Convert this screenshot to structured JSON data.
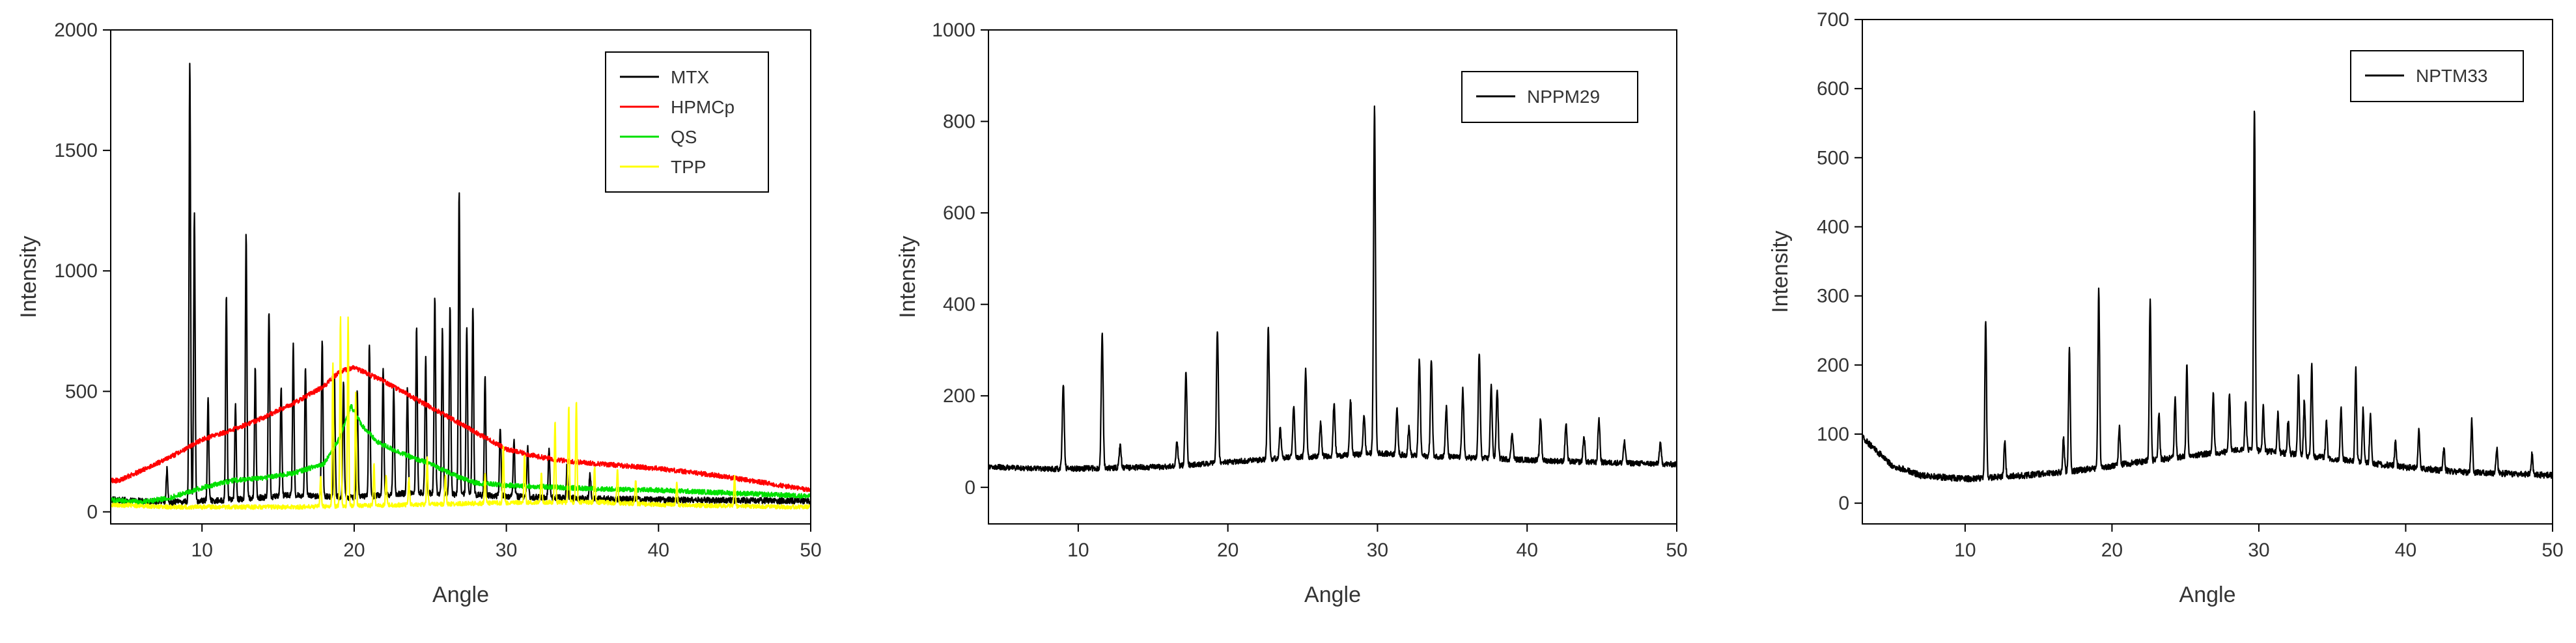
{
  "chart_data": [
    {
      "type": "line",
      "xlabel": "Angle",
      "ylabel": "Intensity",
      "xlim": [
        4,
        50
      ],
      "ylim": [
        -50,
        2000
      ],
      "xticks": [
        10,
        20,
        30,
        40,
        50
      ],
      "yticks": [
        0,
        500,
        1000,
        1500,
        2000
      ],
      "legend": "top-right",
      "colors": {
        "MTX": "#000000",
        "HPMCp": "#ff0000",
        "QS": "#00e000",
        "TPP": "#ffff00"
      },
      "series": [
        {
          "name": "MTX",
          "baseline": [
            [
              4,
              50
            ],
            [
              8,
              40
            ],
            [
              12,
              50
            ],
            [
              16,
              70
            ],
            [
              20,
              60
            ],
            [
              24,
              80
            ],
            [
              28,
              70
            ],
            [
              32,
              60
            ],
            [
              36,
              55
            ],
            [
              40,
              50
            ],
            [
              44,
              48
            ],
            [
              50,
              45
            ]
          ],
          "peaks": [
            [
              7.7,
              180
            ],
            [
              9.2,
              1870
            ],
            [
              9.5,
              1240
            ],
            [
              10.4,
              480
            ],
            [
              11.6,
              900
            ],
            [
              12.2,
              450
            ],
            [
              12.9,
              1150
            ],
            [
              13.5,
              600
            ],
            [
              14.4,
              840
            ],
            [
              15.2,
              520
            ],
            [
              16.0,
              690
            ],
            [
              16.8,
              600
            ],
            [
              17.9,
              720
            ],
            [
              18.7,
              560
            ],
            [
              19.3,
              530
            ],
            [
              20.2,
              510
            ],
            [
              21.0,
              700
            ],
            [
              21.9,
              600
            ],
            [
              22.6,
              510
            ],
            [
              23.5,
              520
            ],
            [
              24.1,
              760
            ],
            [
              24.7,
              640
            ],
            [
              25.3,
              900
            ],
            [
              25.8,
              760
            ],
            [
              26.3,
              860
            ],
            [
              26.9,
              1330
            ],
            [
              27.4,
              760
            ],
            [
              27.8,
              860
            ],
            [
              28.6,
              560
            ],
            [
              29.6,
              350
            ],
            [
              30.5,
              300
            ],
            [
              31.4,
              270
            ],
            [
              32.8,
              260
            ],
            [
              34.0,
              200
            ],
            [
              35.5,
              160
            ]
          ]
        },
        {
          "name": "HPMCp",
          "baseline": [
            [
              4.5,
              130
            ],
            [
              6,
              170
            ],
            [
              8,
              230
            ],
            [
              10,
              300
            ],
            [
              12,
              340
            ],
            [
              14,
              390
            ],
            [
              16,
              450
            ],
            [
              18,
              520
            ],
            [
              19,
              580
            ],
            [
              20,
              600
            ],
            [
              21,
              570
            ],
            [
              22,
              540
            ],
            [
              24,
              470
            ],
            [
              26,
              400
            ],
            [
              28,
              330
            ],
            [
              30,
              260
            ],
            [
              32,
              230
            ],
            [
              34,
              210
            ],
            [
              36,
              200
            ],
            [
              38,
              190
            ],
            [
              40,
              180
            ],
            [
              42,
              165
            ],
            [
              44,
              150
            ],
            [
              46,
              130
            ],
            [
              48,
              110
            ],
            [
              50,
              90
            ]
          ]
        },
        {
          "name": "QS",
          "baseline": [
            [
              4,
              50
            ],
            [
              6,
              40
            ],
            [
              8,
              60
            ],
            [
              10,
              100
            ],
            [
              12,
              130
            ],
            [
              14,
              140
            ],
            [
              16,
              160
            ],
            [
              18,
              200
            ],
            [
              19,
              300
            ],
            [
              19.8,
              440
            ],
            [
              20.5,
              360
            ],
            [
              21.5,
              290
            ],
            [
              22.5,
              260
            ],
            [
              24,
              220
            ],
            [
              25,
              200
            ],
            [
              26,
              170
            ],
            [
              27,
              140
            ],
            [
              28,
              120
            ],
            [
              30,
              110
            ],
            [
              32,
              105
            ],
            [
              36,
              95
            ],
            [
              40,
              90
            ],
            [
              44,
              80
            ],
            [
              50,
              65
            ]
          ]
        },
        {
          "name": "TPP",
          "baseline": [
            [
              4,
              30
            ],
            [
              8,
              20
            ],
            [
              12,
              20
            ],
            [
              16,
              20
            ],
            [
              20,
              25
            ],
            [
              24,
              30
            ],
            [
              28,
              35
            ],
            [
              32,
              40
            ],
            [
              36,
              40
            ],
            [
              40,
              30
            ],
            [
              44,
              25
            ],
            [
              50,
              20
            ]
          ],
          "peaks": [
            [
              17.8,
              150
            ],
            [
              18.6,
              620
            ],
            [
              19.1,
              810
            ],
            [
              19.6,
              800
            ],
            [
              20.1,
              500
            ],
            [
              21.3,
              200
            ],
            [
              22.1,
              150
            ],
            [
              23.6,
              140
            ],
            [
              24.8,
              220
            ],
            [
              26.0,
              160
            ],
            [
              28.6,
              160
            ],
            [
              29.8,
              280
            ],
            [
              31.2,
              240
            ],
            [
              32.3,
              160
            ],
            [
              33.2,
              380
            ],
            [
              34.1,
              440
            ],
            [
              34.6,
              460
            ],
            [
              35.8,
              190
            ],
            [
              37.3,
              180
            ],
            [
              38.5,
              130
            ],
            [
              41.2,
              120
            ],
            [
              45.0,
              150
            ]
          ]
        }
      ]
    },
    {
      "type": "line",
      "xlabel": "Angle",
      "ylabel": "Intensity",
      "xlim": [
        4,
        50
      ],
      "ylim": [
        -80,
        1000
      ],
      "xticks": [
        10,
        20,
        30,
        40,
        50
      ],
      "yticks": [
        0,
        200,
        400,
        600,
        800,
        1000
      ],
      "legend": "top-right",
      "colors": {
        "NPPM29": "#000000"
      },
      "series": [
        {
          "name": "NPPM29",
          "baseline": [
            [
              4,
              45
            ],
            [
              8,
              40
            ],
            [
              12,
              42
            ],
            [
              16,
              45
            ],
            [
              20,
              55
            ],
            [
              24,
              65
            ],
            [
              28,
              70
            ],
            [
              30,
              75
            ],
            [
              32,
              70
            ],
            [
              36,
              65
            ],
            [
              40,
              60
            ],
            [
              44,
              55
            ],
            [
              48,
              52
            ],
            [
              50,
              50
            ]
          ],
          "peaks": [
            [
              9.0,
              225
            ],
            [
              11.6,
              335
            ],
            [
              12.8,
              90
            ],
            [
              16.6,
              100
            ],
            [
              17.2,
              250
            ],
            [
              19.3,
              345
            ],
            [
              22.7,
              350
            ],
            [
              23.5,
              130
            ],
            [
              24.4,
              180
            ],
            [
              25.2,
              255
            ],
            [
              26.2,
              140
            ],
            [
              27.1,
              185
            ],
            [
              28.2,
              190
            ],
            [
              29.1,
              160
            ],
            [
              29.8,
              830
            ],
            [
              31.3,
              170
            ],
            [
              32.1,
              130
            ],
            [
              32.8,
              280
            ],
            [
              33.6,
              280
            ],
            [
              34.6,
              175
            ],
            [
              35.7,
              215
            ],
            [
              36.8,
              295
            ],
            [
              37.6,
              220
            ],
            [
              38.0,
              215
            ],
            [
              39.0,
              120
            ],
            [
              40.9,
              150
            ],
            [
              42.6,
              140
            ],
            [
              43.8,
              110
            ],
            [
              44.8,
              150
            ],
            [
              46.5,
              100
            ],
            [
              48.9,
              95
            ]
          ]
        }
      ]
    },
    {
      "type": "line",
      "xlabel": "Angle",
      "ylabel": "Intensity",
      "xlim": [
        3,
        50
      ],
      "ylim": [
        -30,
        700
      ],
      "xticks": [
        10,
        20,
        30,
        40,
        50
      ],
      "yticks": [
        0,
        100,
        200,
        300,
        400,
        500,
        600,
        700
      ],
      "legend": "top-right",
      "colors": {
        "NPTM33": "#000000"
      },
      "series": [
        {
          "name": "NPTM33",
          "baseline": [
            [
              3,
              95
            ],
            [
              4,
              75
            ],
            [
              5,
              55
            ],
            [
              7,
              40
            ],
            [
              10,
              35
            ],
            [
              14,
              40
            ],
            [
              18,
              48
            ],
            [
              22,
              60
            ],
            [
              26,
              70
            ],
            [
              29,
              78
            ],
            [
              32,
              72
            ],
            [
              36,
              62
            ],
            [
              40,
              52
            ],
            [
              44,
              45
            ],
            [
              48,
              42
            ],
            [
              50,
              40
            ]
          ],
          "peaks": [
            [
              11.4,
              265
            ],
            [
              12.7,
              90
            ],
            [
              16.7,
              95
            ],
            [
              17.1,
              225
            ],
            [
              19.1,
              310
            ],
            [
              20.5,
              110
            ],
            [
              22.6,
              295
            ],
            [
              23.2,
              130
            ],
            [
              24.3,
              155
            ],
            [
              25.1,
              200
            ],
            [
              26.9,
              160
            ],
            [
              28.0,
              160
            ],
            [
              29.1,
              150
            ],
            [
              29.7,
              575
            ],
            [
              30.3,
              140
            ],
            [
              31.3,
              130
            ],
            [
              32.0,
              120
            ],
            [
              32.7,
              185
            ],
            [
              33.1,
              150
            ],
            [
              33.6,
              200
            ],
            [
              34.6,
              120
            ],
            [
              35.6,
              140
            ],
            [
              36.6,
              195
            ],
            [
              37.1,
              135
            ],
            [
              37.6,
              130
            ],
            [
              39.3,
              90
            ],
            [
              40.9,
              105
            ],
            [
              42.6,
              80
            ],
            [
              44.5,
              120
            ],
            [
              46.2,
              80
            ],
            [
              48.6,
              70
            ]
          ]
        }
      ]
    }
  ]
}
